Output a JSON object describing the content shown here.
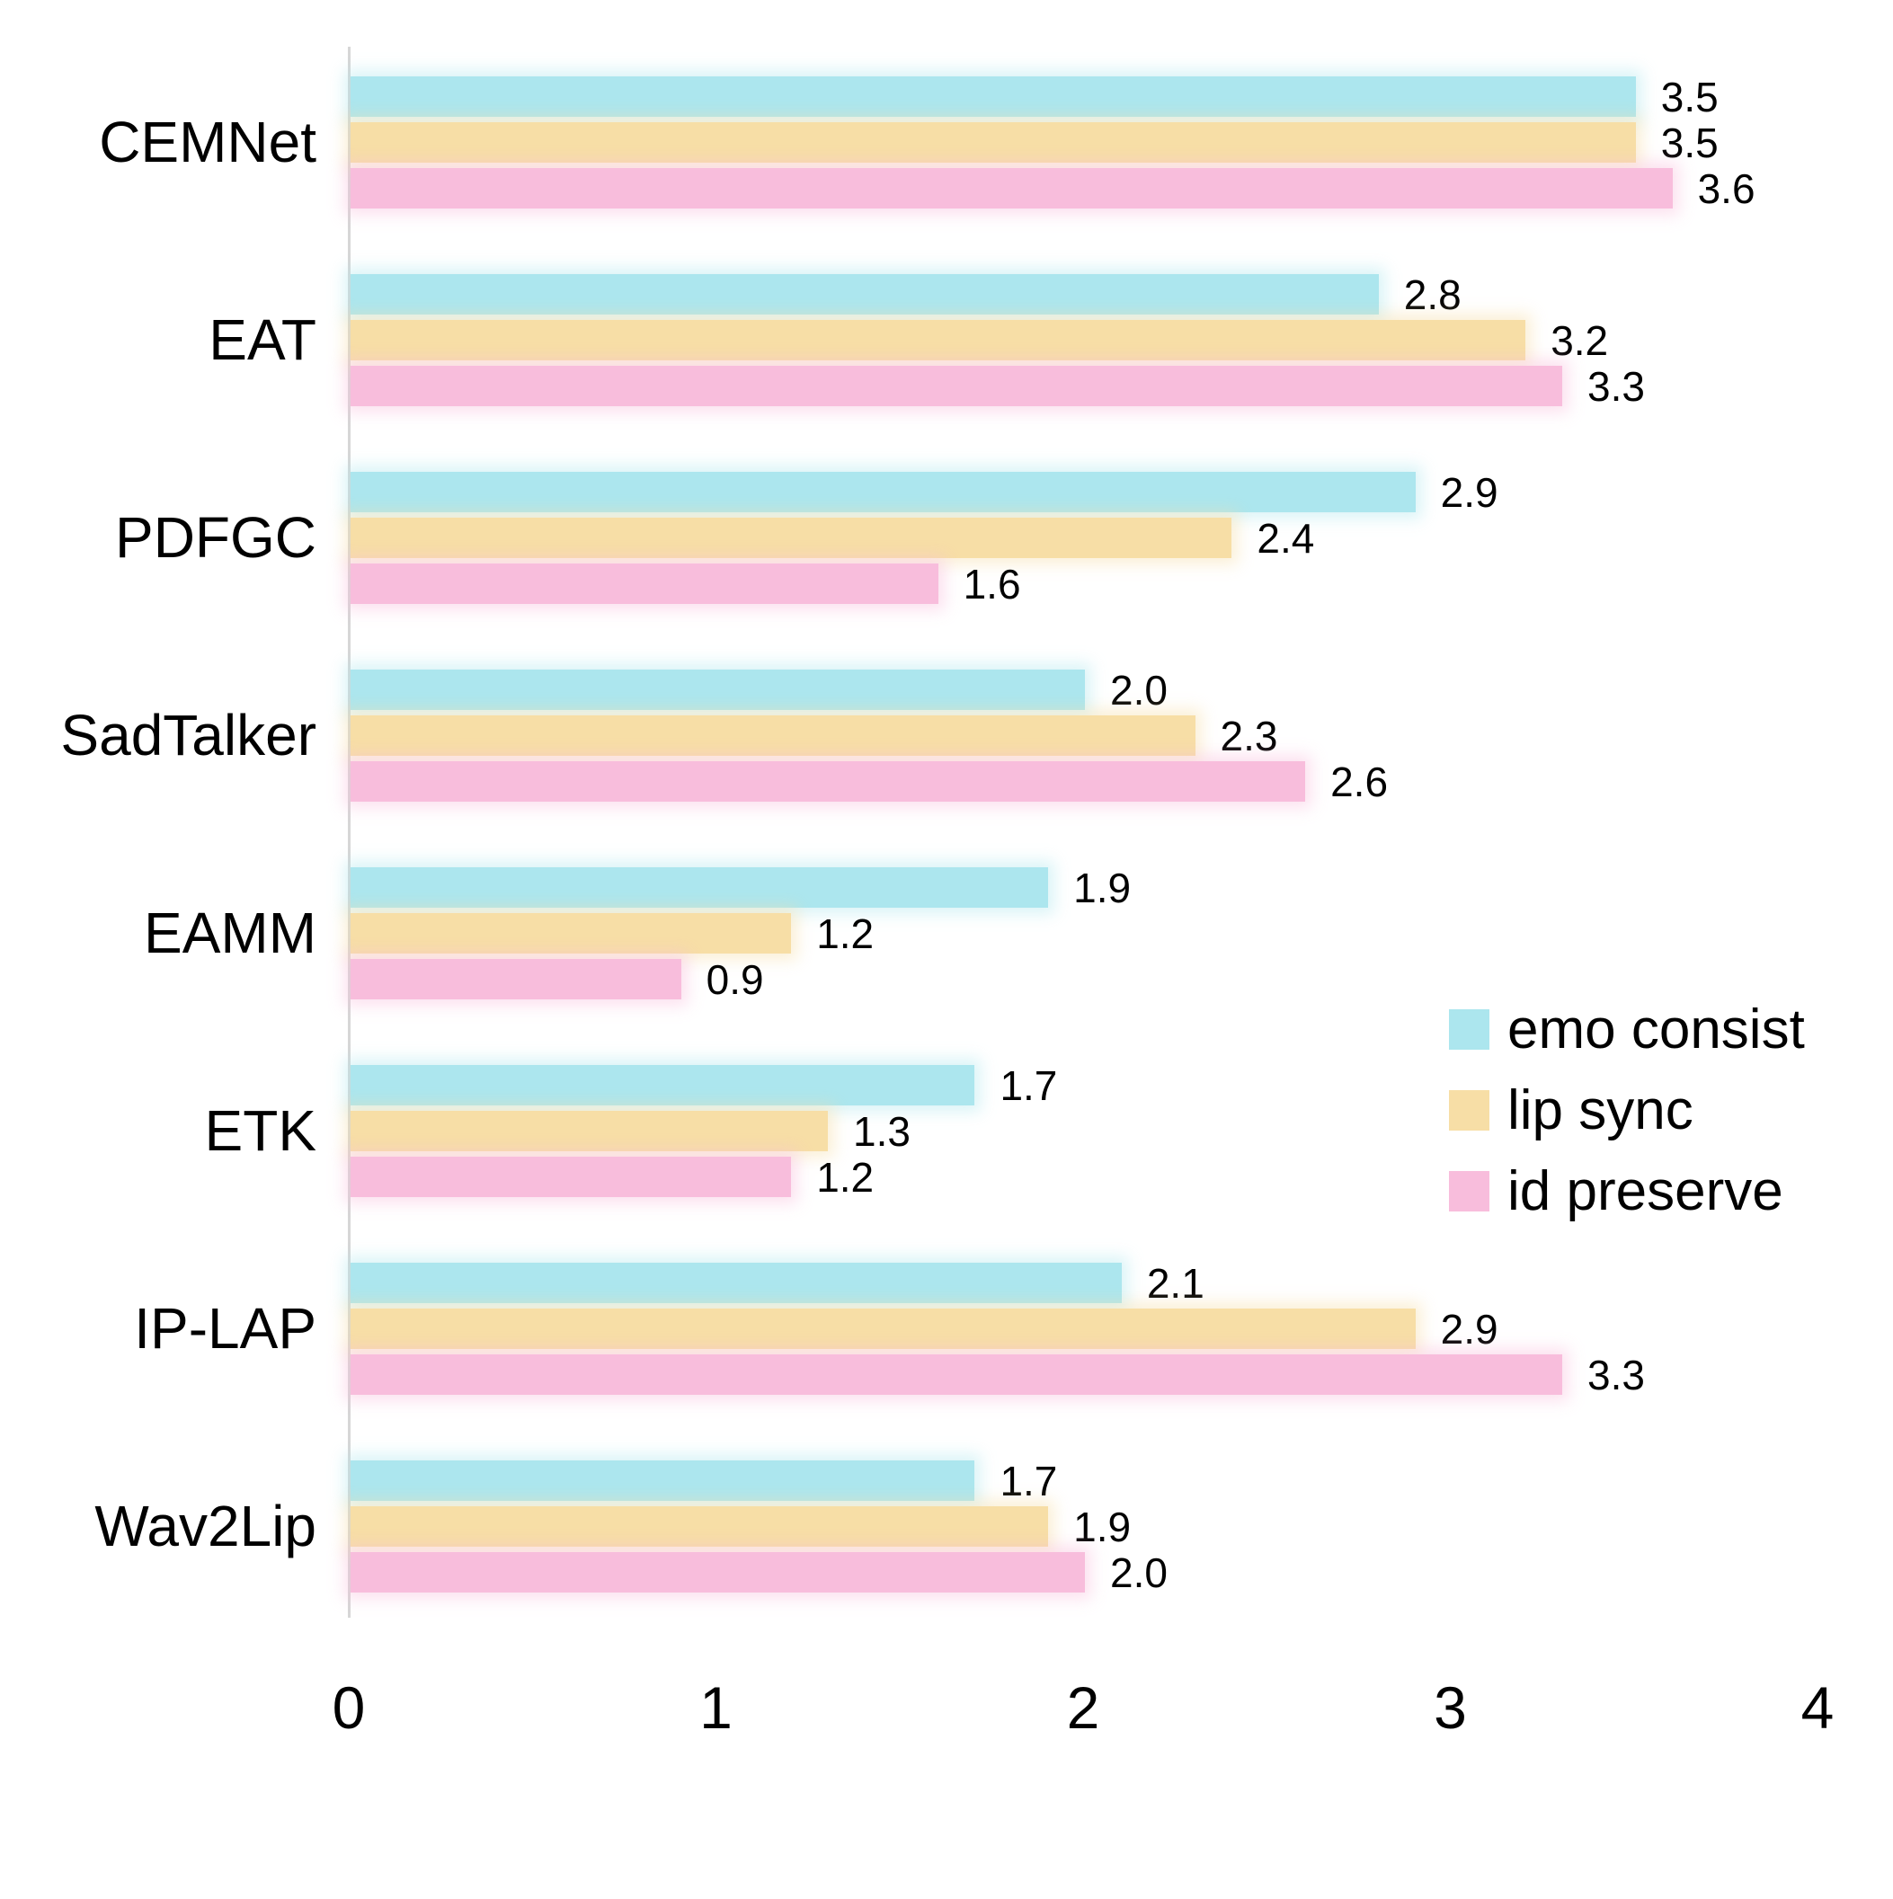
{
  "chart_data": {
    "type": "bar",
    "orientation": "horizontal",
    "title": "",
    "xlabel": "",
    "ylabel": "",
    "categories": [
      "CEMNet",
      "EAT",
      "PDFGC",
      "SadTalker",
      "EAMM",
      "ETK",
      "IP-LAP",
      "Wav2Lip"
    ],
    "series": [
      {
        "name": "emo consist",
        "color": "#ACE6EE",
        "values": [
          3.5,
          2.8,
          2.9,
          2.0,
          1.9,
          1.7,
          2.1,
          1.7
        ]
      },
      {
        "name": "lip sync",
        "color": "#F7DEA6",
        "values": [
          3.5,
          3.2,
          2.4,
          2.3,
          1.2,
          1.3,
          2.9,
          1.9
        ]
      },
      {
        "name": "id preserve",
        "color": "#F8BDDC",
        "values": [
          3.6,
          3.3,
          1.6,
          2.6,
          0.9,
          1.2,
          3.3,
          2.0
        ]
      }
    ],
    "xlim": [
      0,
      4
    ],
    "x_ticks": [
      "0",
      "1",
      "2",
      "3",
      "4"
    ],
    "value_labels_shown": true,
    "value_label_decimals": 1,
    "legend_position": "middle-right",
    "grid": false,
    "axis_line_color": "#d6d6d6",
    "text_color": "#000000",
    "background_color": "#ffffff"
  }
}
